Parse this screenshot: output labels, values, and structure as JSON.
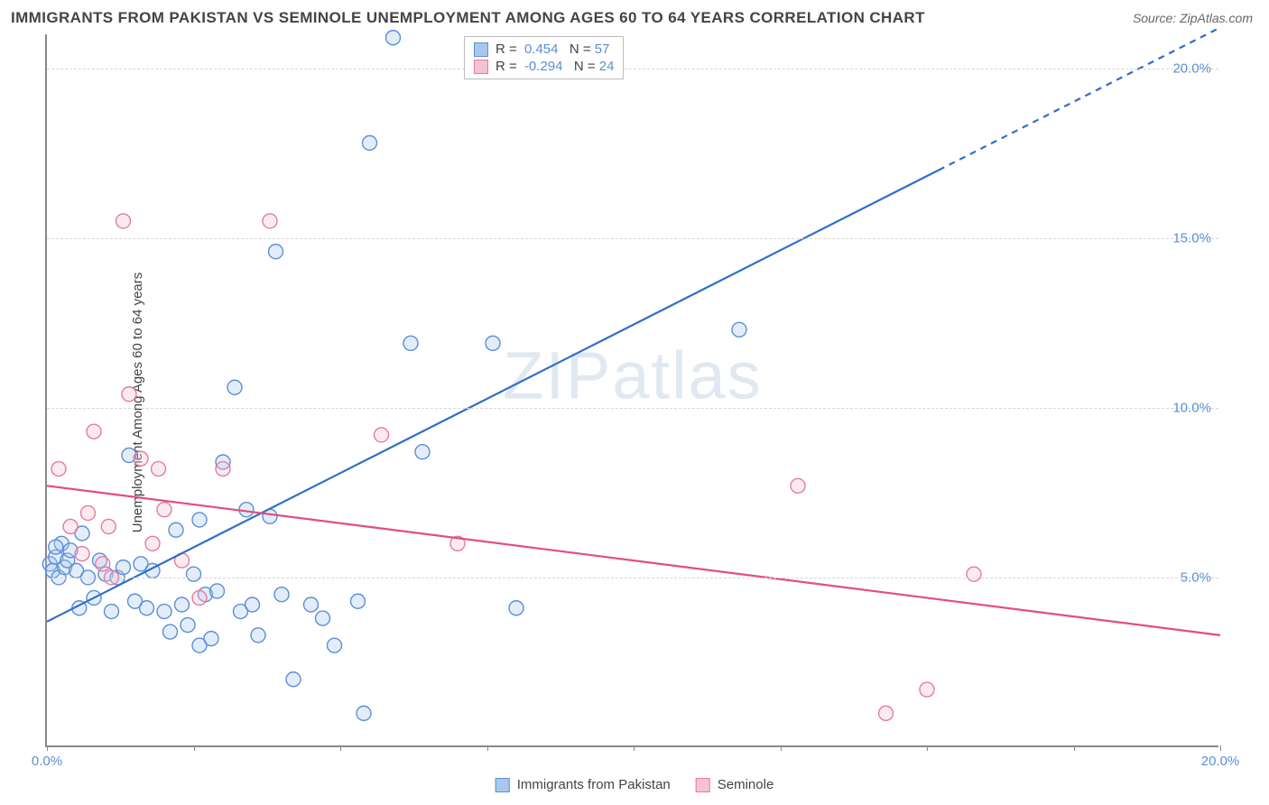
{
  "title": "IMMIGRANTS FROM PAKISTAN VS SEMINOLE UNEMPLOYMENT AMONG AGES 60 TO 64 YEARS CORRELATION CHART",
  "source": "Source: ZipAtlas.com",
  "ylabel": "Unemployment Among Ages 60 to 64 years",
  "watermark": "ZIPatlas",
  "chart": {
    "type": "scatter",
    "xlim": [
      0,
      20
    ],
    "ylim": [
      0,
      21
    ],
    "xtick_positions": [
      0,
      2.5,
      5,
      7.5,
      10,
      12.5,
      15,
      17.5,
      20
    ],
    "xtick_labels": {
      "0": "0.0%",
      "20": "20.0%"
    },
    "ytick_positions": [
      5,
      10,
      15,
      20
    ],
    "ytick_labels": [
      "5.0%",
      "10.0%",
      "15.0%",
      "20.0%"
    ],
    "grid_color": "#d8d8d8",
    "background_color": "#ffffff",
    "marker_radius": 8,
    "marker_fill_opacity": 0.32,
    "marker_stroke_width": 1.4,
    "series": [
      {
        "name": "Immigrants from Pakistan",
        "color_fill": "#a9c7ec",
        "color_stroke": "#5b8fd6",
        "R": 0.454,
        "N": 57,
        "trend": {
          "x1": 0,
          "y1": 3.7,
          "x2": 15.2,
          "y2": 17.0,
          "dash_from_x": 15.2,
          "x3": 20,
          "y3": 21.2,
          "color": "#2f6fc8",
          "width": 2.2
        },
        "points": [
          [
            0.05,
            5.4
          ],
          [
            0.1,
            5.2
          ],
          [
            0.15,
            5.6
          ],
          [
            0.2,
            5.0
          ],
          [
            0.25,
            6.0
          ],
          [
            0.3,
            5.3
          ],
          [
            0.35,
            5.5
          ],
          [
            0.4,
            5.8
          ],
          [
            0.5,
            5.2
          ],
          [
            0.55,
            4.1
          ],
          [
            0.6,
            6.3
          ],
          [
            0.7,
            5.0
          ],
          [
            0.8,
            4.4
          ],
          [
            0.9,
            5.5
          ],
          [
            1.0,
            5.1
          ],
          [
            1.1,
            4.0
          ],
          [
            1.2,
            5.0
          ],
          [
            1.3,
            5.3
          ],
          [
            1.4,
            8.6
          ],
          [
            1.5,
            4.3
          ],
          [
            1.6,
            5.4
          ],
          [
            1.7,
            4.1
          ],
          [
            1.8,
            5.2
          ],
          [
            2.0,
            4.0
          ],
          [
            2.1,
            3.4
          ],
          [
            2.2,
            6.4
          ],
          [
            2.3,
            4.2
          ],
          [
            2.4,
            3.6
          ],
          [
            2.5,
            5.1
          ],
          [
            2.6,
            3.0
          ],
          [
            2.6,
            6.7
          ],
          [
            2.7,
            4.5
          ],
          [
            2.8,
            3.2
          ],
          [
            2.9,
            4.6
          ],
          [
            3.0,
            8.4
          ],
          [
            3.2,
            10.6
          ],
          [
            3.3,
            4.0
          ],
          [
            3.4,
            7.0
          ],
          [
            3.5,
            4.2
          ],
          [
            3.6,
            3.3
          ],
          [
            3.8,
            6.8
          ],
          [
            3.9,
            14.6
          ],
          [
            4.0,
            4.5
          ],
          [
            4.2,
            2.0
          ],
          [
            4.5,
            4.2
          ],
          [
            4.7,
            3.8
          ],
          [
            4.9,
            3.0
          ],
          [
            5.3,
            4.3
          ],
          [
            5.4,
            1.0
          ],
          [
            5.5,
            17.8
          ],
          [
            5.9,
            20.9
          ],
          [
            6.2,
            11.9
          ],
          [
            6.4,
            8.7
          ],
          [
            7.6,
            11.9
          ],
          [
            8.0,
            4.1
          ],
          [
            11.8,
            12.3
          ],
          [
            0.15,
            5.9
          ]
        ]
      },
      {
        "name": "Seminole",
        "color_fill": "#f4c2d0",
        "color_stroke": "#e57ba0",
        "R": -0.294,
        "N": 24,
        "trend": {
          "x1": 0,
          "y1": 7.7,
          "x2": 20,
          "y2": 3.3,
          "color": "#e44d7b",
          "width": 2.2
        },
        "points": [
          [
            0.2,
            8.2
          ],
          [
            0.4,
            6.5
          ],
          [
            0.6,
            5.7
          ],
          [
            0.7,
            6.9
          ],
          [
            0.8,
            9.3
          ],
          [
            0.95,
            5.4
          ],
          [
            1.05,
            6.5
          ],
          [
            1.1,
            5.0
          ],
          [
            1.3,
            15.5
          ],
          [
            1.4,
            10.4
          ],
          [
            1.6,
            8.5
          ],
          [
            1.8,
            6.0
          ],
          [
            1.9,
            8.2
          ],
          [
            2.0,
            7.0
          ],
          [
            2.3,
            5.5
          ],
          [
            2.6,
            4.4
          ],
          [
            3.0,
            8.2
          ],
          [
            3.8,
            15.5
          ],
          [
            5.7,
            9.2
          ],
          [
            7.0,
            6.0
          ],
          [
            12.8,
            7.7
          ],
          [
            14.3,
            1.0
          ],
          [
            15.0,
            1.7
          ],
          [
            15.8,
            5.1
          ]
        ]
      }
    ],
    "legend_top": {
      "r_label": "R =",
      "n_label": "N ="
    }
  }
}
